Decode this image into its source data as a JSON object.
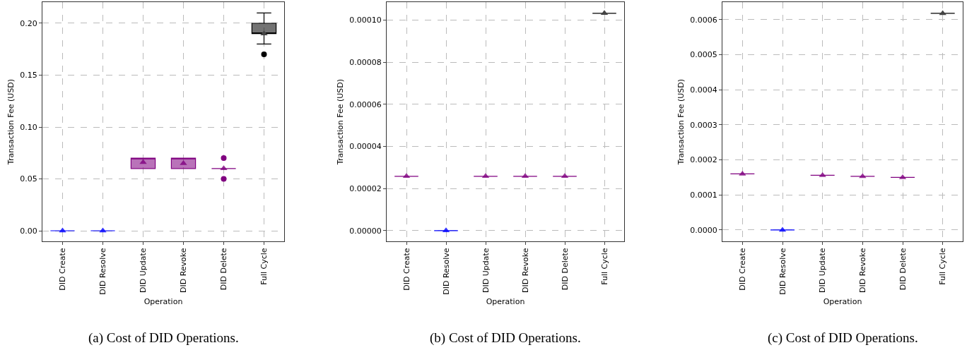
{
  "chart_data": [
    {
      "type": "box",
      "title": "(a) Cost of DID Operations.",
      "xlabel": "Operation",
      "ylabel": "Transaction Fee (USD)",
      "categories": [
        "DID Create",
        "DID Resolve",
        "DID Update",
        "DID Revoke",
        "DID Delete",
        "Full Cycle"
      ],
      "boxes": [
        {
          "low": 0,
          "q1": 0,
          "median": 0,
          "q3": 0,
          "high": 0,
          "mean": 0
        },
        {
          "low": 0,
          "q1": 0,
          "median": 0,
          "q3": 0,
          "high": 0,
          "mean": 0
        },
        {
          "low": 0.06,
          "q1": 0.06,
          "median": 0.07,
          "q3": 0.07,
          "high": 0.07,
          "mean": 0.066
        },
        {
          "low": 0.06,
          "q1": 0.06,
          "median": 0.07,
          "q3": 0.07,
          "high": 0.07,
          "mean": 0.065
        },
        {
          "low": 0.06,
          "q1": 0.06,
          "median": 0.06,
          "q3": 0.06,
          "high": 0.06,
          "mean": 0.06,
          "outliers": [
            0.05,
            0.07
          ]
        },
        {
          "low": 0.18,
          "q1": 0.19,
          "median": 0.19,
          "q3": 0.2,
          "high": 0.21,
          "mean": 0.19,
          "outliers": [
            0.17
          ]
        }
      ],
      "colors": [
        "#0000ff",
        "#0000ff",
        "#800080",
        "#800080",
        "#800080",
        "#000000"
      ],
      "ylim": [
        -0.0102,
        0.2204
      ],
      "yticks": [
        {
          "value": 0,
          "label": "0.00"
        },
        {
          "value": 0.05,
          "label": "0.05"
        },
        {
          "value": 0.1,
          "label": "0.10"
        },
        {
          "value": 0.15,
          "label": "0.15"
        },
        {
          "value": 0.2,
          "label": "0.20"
        }
      ],
      "grid": true,
      "marker": "triangle"
    },
    {
      "type": "box",
      "title": "(b) Cost of DID Operations.",
      "xlabel": "Operation",
      "ylabel": "Transaction Fee (USD)",
      "categories": [
        "DID Create",
        "DID Resolve",
        "DID Update",
        "DID Revoke",
        "DID Delete",
        "Full Cycle"
      ],
      "boxes": [
        {
          "low": 2.58e-05,
          "q1": 2.58e-05,
          "median": 2.58e-05,
          "q3": 2.58e-05,
          "high": 2.58e-05,
          "mean": 2.58e-05
        },
        {
          "low": 0,
          "q1": 0,
          "median": 0,
          "q3": 0,
          "high": 0,
          "mean": 0
        },
        {
          "low": 2.58e-05,
          "q1": 2.58e-05,
          "median": 2.58e-05,
          "q3": 2.58e-05,
          "high": 2.58e-05,
          "mean": 2.58e-05
        },
        {
          "low": 2.58e-05,
          "q1": 2.58e-05,
          "median": 2.58e-05,
          "q3": 2.58e-05,
          "high": 2.58e-05,
          "mean": 2.58e-05
        },
        {
          "low": 2.58e-05,
          "q1": 2.58e-05,
          "median": 2.58e-05,
          "q3": 2.58e-05,
          "high": 2.58e-05,
          "mean": 2.58e-05
        },
        {
          "low": 0.0001032,
          "q1": 0.0001032,
          "median": 0.0001032,
          "q3": 0.0001032,
          "high": 0.0001032,
          "mean": 0.0001032
        }
      ],
      "colors": [
        "#800080",
        "#0000ff",
        "#800080",
        "#800080",
        "#800080",
        "#000000"
      ],
      "ylim": [
        -5.1e-06,
        0.0001085
      ],
      "yticks": [
        {
          "value": 0,
          "label": "0.00000"
        },
        {
          "value": 2e-05,
          "label": "0.00002"
        },
        {
          "value": 4e-05,
          "label": "0.00004"
        },
        {
          "value": 6e-05,
          "label": "0.00006"
        },
        {
          "value": 8e-05,
          "label": "0.00008"
        },
        {
          "value": 0.0001,
          "label": "0.00010"
        }
      ],
      "grid": true,
      "marker": "triangle"
    },
    {
      "type": "box",
      "title": "(c) Cost of DID Operations.",
      "xlabel": "Operation",
      "ylabel": "Transaction Fee (USD)",
      "categories": [
        "DID Create",
        "DID Resolve",
        "DID Update",
        "DID Revoke",
        "DID Delete",
        "Full Cycle"
      ],
      "boxes": [
        {
          "low": 0.00016,
          "q1": 0.00016,
          "median": 0.00016,
          "q3": 0.00016,
          "high": 0.00016,
          "mean": 0.00016
        },
        {
          "low": 0,
          "q1": 0,
          "median": 0,
          "q3": 0,
          "high": 0,
          "mean": 0
        },
        {
          "low": 0.000156,
          "q1": 0.000156,
          "median": 0.000156,
          "q3": 0.000156,
          "high": 0.000156,
          "mean": 0.000156
        },
        {
          "low": 0.000153,
          "q1": 0.000153,
          "median": 0.000153,
          "q3": 0.000153,
          "high": 0.000153,
          "mean": 0.000153
        },
        {
          "low": 0.00015,
          "q1": 0.00015,
          "median": 0.00015,
          "q3": 0.00015,
          "high": 0.00015,
          "mean": 0.00015
        },
        {
          "low": 0.000618,
          "q1": 0.000618,
          "median": 0.000618,
          "q3": 0.000618,
          "high": 0.000618,
          "mean": 0.000618
        }
      ],
      "colors": [
        "#800080",
        "#0000ff",
        "#800080",
        "#800080",
        "#800080",
        "#000000"
      ],
      "ylim": [
        -3.23e-05,
        0.00065
      ],
      "yticks": [
        {
          "value": 0,
          "label": "0.0000"
        },
        {
          "value": 0.0001,
          "label": "0.0001"
        },
        {
          "value": 0.0002,
          "label": "0.0002"
        },
        {
          "value": 0.0003,
          "label": "0.0003"
        },
        {
          "value": 0.0004,
          "label": "0.0004"
        },
        {
          "value": 0.0005,
          "label": "0.0005"
        },
        {
          "value": 0.0006,
          "label": "0.0006"
        }
      ],
      "grid": true,
      "marker": "triangle"
    }
  ]
}
